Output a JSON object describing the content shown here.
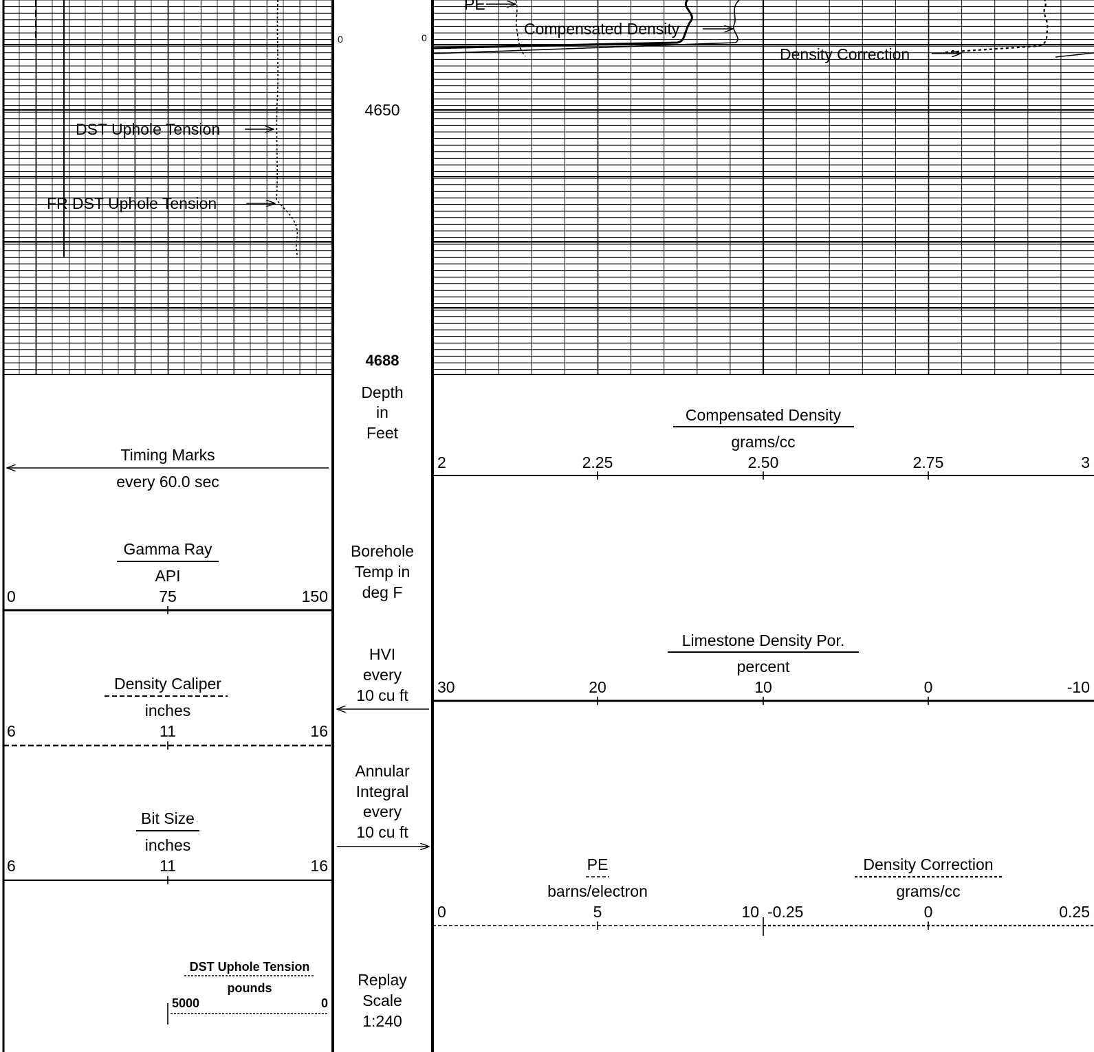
{
  "log": {
    "depth_track": {
      "depth_labels": [
        "4650",
        "4688"
      ],
      "zero_left": "0",
      "zero_right": "0",
      "depth_title": [
        "Depth",
        "in",
        "Feet"
      ],
      "borehole_temp": [
        "Borehole",
        "Temp in",
        "deg F"
      ],
      "hvi": [
        "HVI",
        "every",
        "10 cu ft"
      ],
      "annular": [
        "Annular",
        "Integral",
        "every",
        "10 cu ft"
      ],
      "replay": [
        "Replay",
        "Scale",
        "1:240"
      ]
    },
    "curve_labels": {
      "pe": "PE",
      "compensated_density": "Compensated Density",
      "density_correction": "Density Correction",
      "dst_uphole_tension": "DST Uphole Tension",
      "fr_dst_uphole_tension": "FR DST Uphole Tension"
    },
    "left_scales": {
      "timing_marks": {
        "title": "Timing Marks",
        "subtitle": "every 60.0 sec"
      },
      "gamma_ray": {
        "title": "Gamma Ray",
        "unit": "API",
        "ticks": [
          "0",
          "75",
          "150"
        ]
      },
      "density_caliper": {
        "title": "Density Caliper",
        "unit": "inches",
        "ticks": [
          "6",
          "11",
          "16"
        ]
      },
      "bit_size": {
        "title": "Bit Size",
        "unit": "inches",
        "ticks": [
          "6",
          "11",
          "16"
        ]
      },
      "dst_uphole_tension": {
        "title": "DST Uphole Tension",
        "unit": "pounds",
        "ticks": [
          "5000",
          "0"
        ]
      }
    },
    "right_scales": {
      "compensated_density": {
        "title": "Compensated Density",
        "unit": "grams/cc",
        "ticks": [
          "2",
          "2.25",
          "2.50",
          "2.75",
          "3"
        ]
      },
      "limestone_density_por": {
        "title": "Limestone Density Por.",
        "unit": "percent",
        "ticks": [
          "30",
          "20",
          "10",
          "0",
          "-10"
        ]
      },
      "pe": {
        "title": "PE",
        "unit": "barns/electron",
        "ticks": [
          "0",
          "5",
          "10"
        ]
      },
      "density_correction": {
        "title": "Density Correction",
        "unit": "grams/cc",
        "ticks": [
          "-0.25",
          "0",
          "0.25"
        ]
      }
    }
  }
}
